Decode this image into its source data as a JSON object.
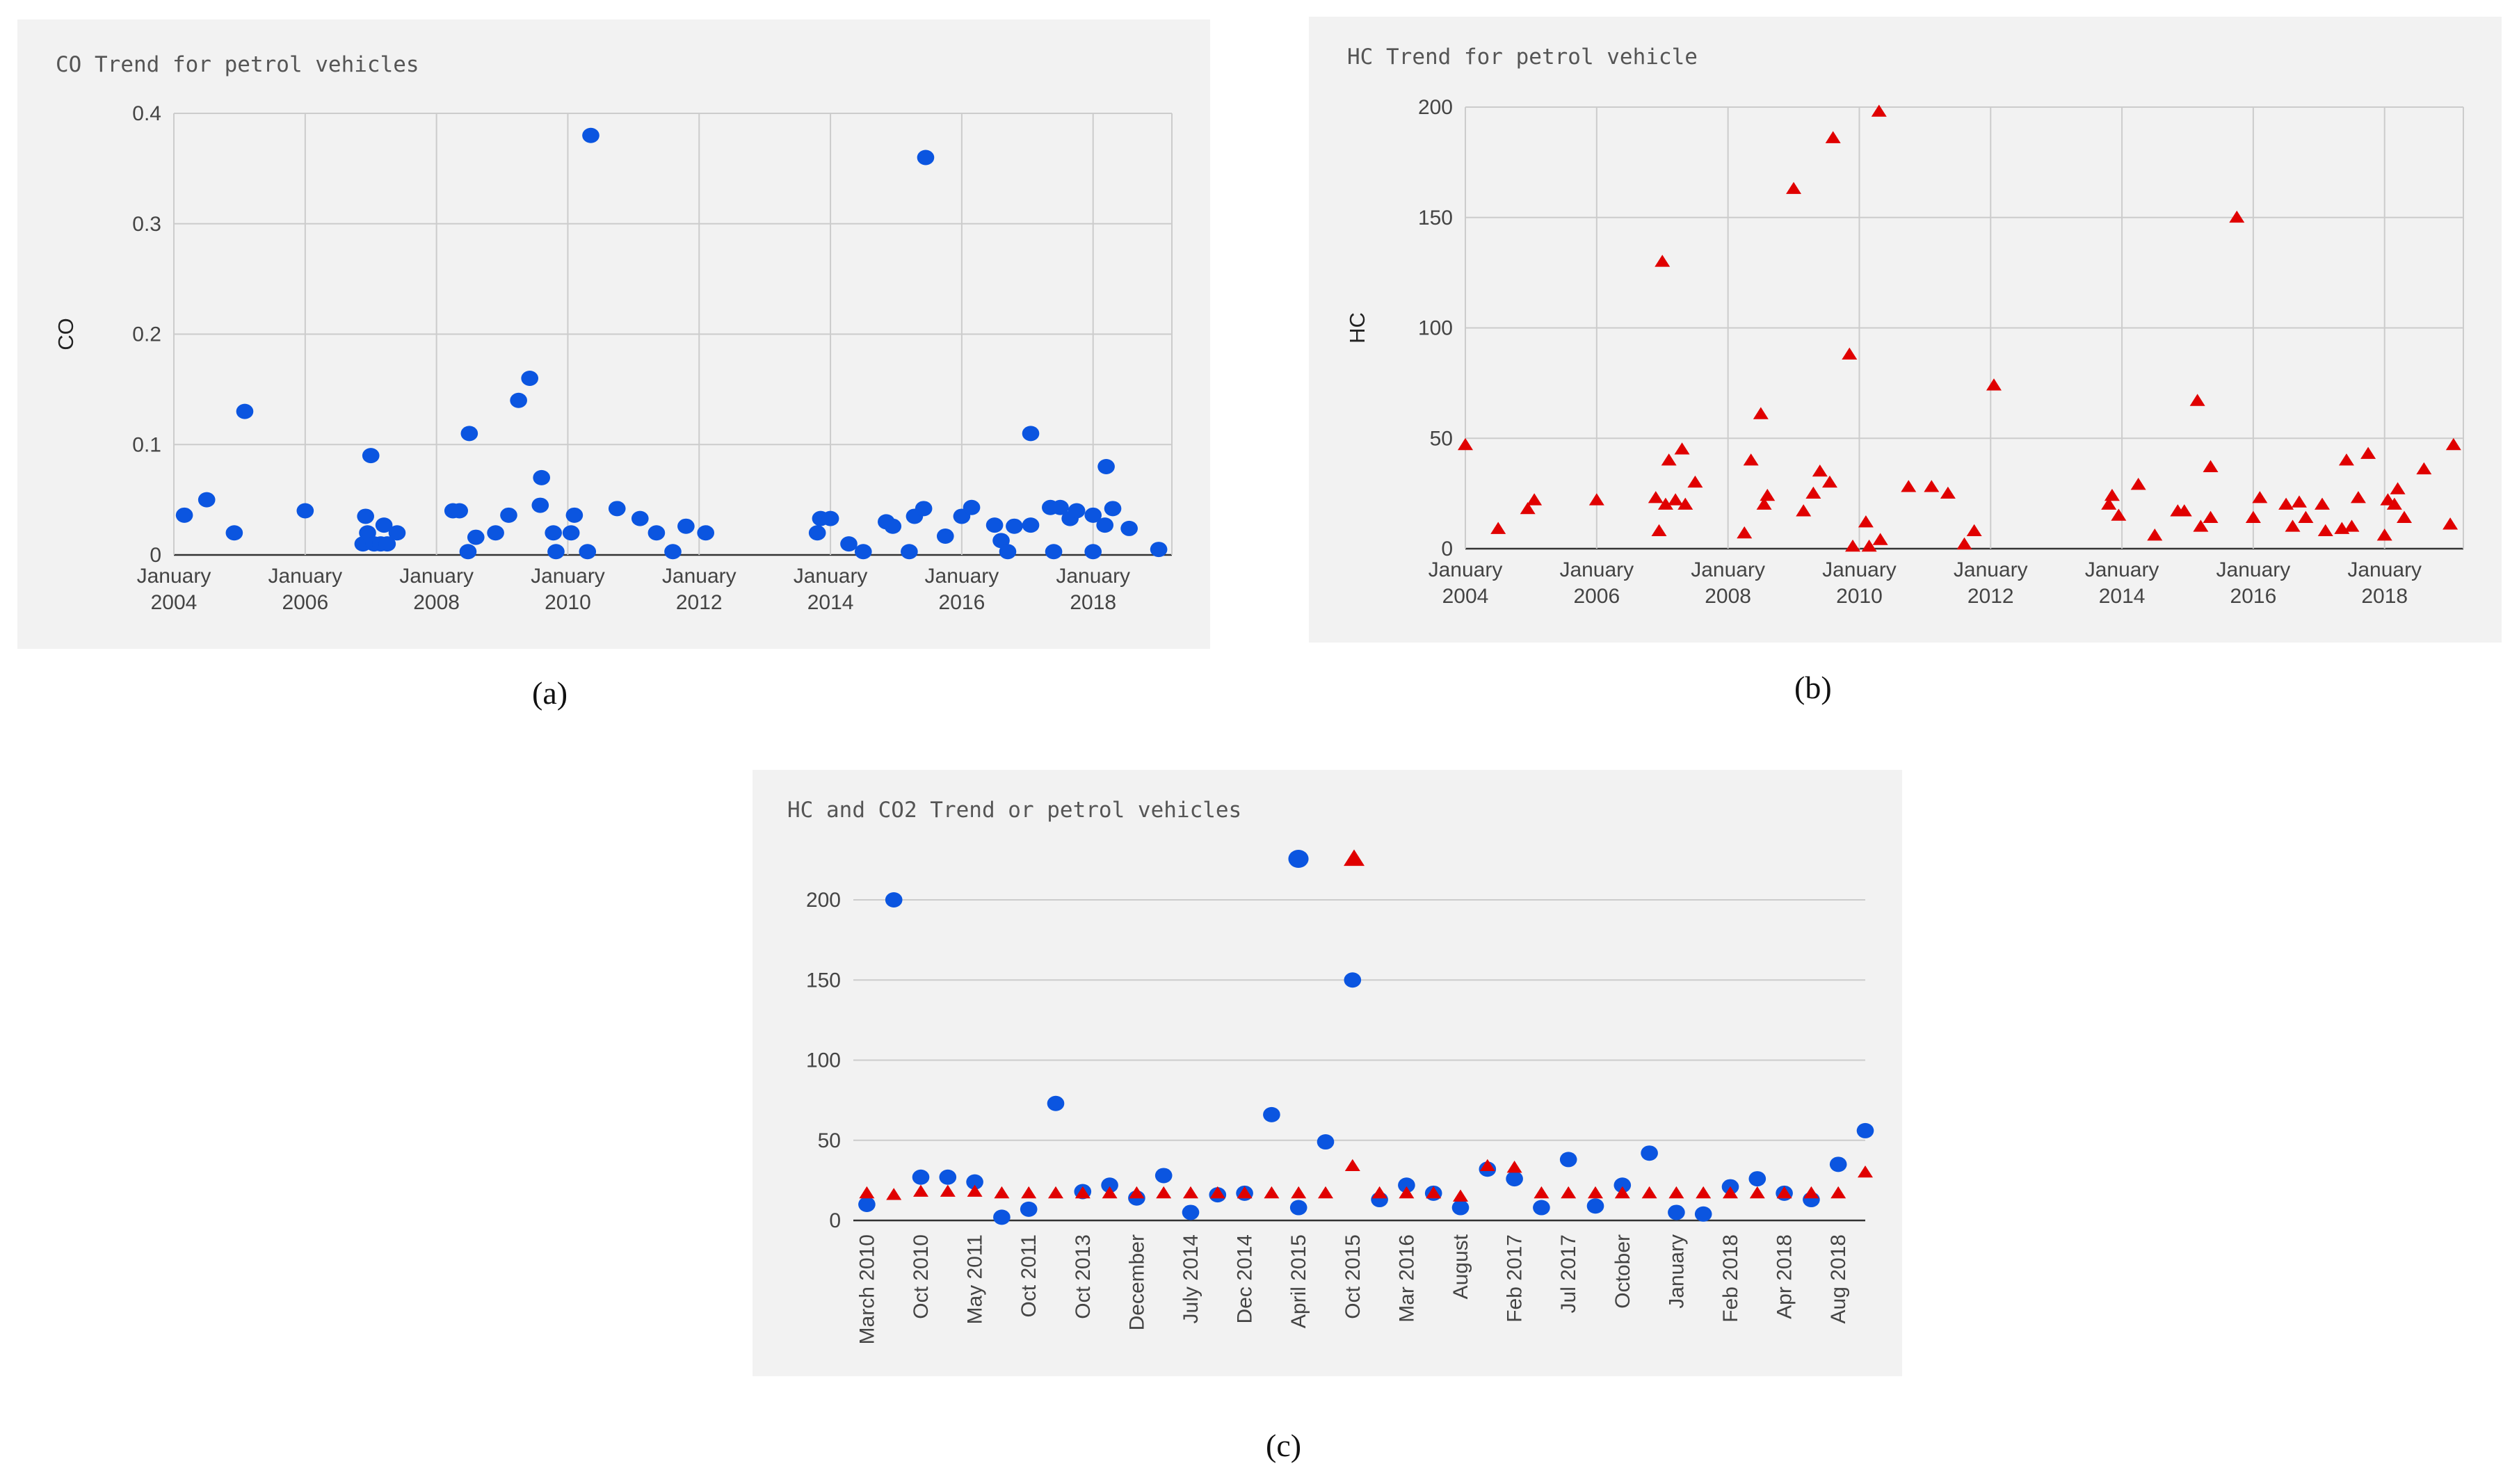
{
  "captions": {
    "a": "(a)",
    "b": "(b)",
    "c": "(c)"
  },
  "colors": {
    "blue": "#0b55e0",
    "red": "#e00000",
    "grid": "#cccccc",
    "axis": "#333333"
  },
  "chart_data": [
    {
      "id": "a",
      "type": "scatter",
      "title": "CO Trend for petrol vehicles",
      "xlabel": "",
      "ylabel": "CO",
      "xlim": [
        2004,
        2019.2
      ],
      "ylim": [
        0,
        0.4
      ],
      "yticks": [
        {
          "v": 0,
          "label": "0"
        },
        {
          "v": 0.1,
          "label": "0.1"
        },
        {
          "v": 0.2,
          "label": "0.2"
        },
        {
          "v": 0.3,
          "label": "0.3"
        },
        {
          "v": 0.4,
          "label": "0.4"
        }
      ],
      "xticks": [
        {
          "v": 2004,
          "line1": "January",
          "line2": "2004"
        },
        {
          "v": 2006,
          "line1": "January",
          "line2": "2006"
        },
        {
          "v": 2008,
          "line1": "January",
          "line2": "2008"
        },
        {
          "v": 2010,
          "line1": "January",
          "line2": "2010"
        },
        {
          "v": 2012,
          "line1": "January",
          "line2": "2012"
        },
        {
          "v": 2014,
          "line1": "January",
          "line2": "2014"
        },
        {
          "v": 2016,
          "line1": "January",
          "line2": "2016"
        },
        {
          "v": 2018,
          "line1": "January",
          "line2": "2018"
        }
      ],
      "series": [
        {
          "name": "CO",
          "marker": "circle",
          "color": "#0b55e0",
          "points": [
            [
              2004.16,
              0.036
            ],
            [
              2004.5,
              0.05
            ],
            [
              2004.92,
              0.02
            ],
            [
              2005.08,
              0.13
            ],
            [
              2006.0,
              0.04
            ],
            [
              2006.88,
              0.01
            ],
            [
              2006.92,
              0.035
            ],
            [
              2006.95,
              0.02
            ],
            [
              2007.0,
              0.09
            ],
            [
              2007.05,
              0.01
            ],
            [
              2007.15,
              0.01
            ],
            [
              2007.25,
              0.01
            ],
            [
              2007.2,
              0.027
            ],
            [
              2007.4,
              0.02
            ],
            [
              2008.25,
              0.04
            ],
            [
              2008.35,
              0.04
            ],
            [
              2008.5,
              0.11
            ],
            [
              2008.48,
              0.003
            ],
            [
              2008.6,
              0.016
            ],
            [
              2008.9,
              0.02
            ],
            [
              2009.1,
              0.036
            ],
            [
              2009.25,
              0.14
            ],
            [
              2009.42,
              0.16
            ],
            [
              2009.6,
              0.07
            ],
            [
              2009.58,
              0.045
            ],
            [
              2009.78,
              0.02
            ],
            [
              2009.82,
              0.003
            ],
            [
              2010.1,
              0.036
            ],
            [
              2010.05,
              0.02
            ],
            [
              2010.35,
              0.38
            ],
            [
              2010.3,
              0.003
            ],
            [
              2010.75,
              0.042
            ],
            [
              2011.1,
              0.033
            ],
            [
              2011.35,
              0.02
            ],
            [
              2011.6,
              0.003
            ],
            [
              2011.8,
              0.026
            ],
            [
              2012.1,
              0.02
            ],
            [
              2013.8,
              0.02
            ],
            [
              2013.85,
              0.033
            ],
            [
              2014.0,
              0.033
            ],
            [
              2014.28,
              0.01
            ],
            [
              2014.5,
              0.003
            ],
            [
              2014.85,
              0.03
            ],
            [
              2014.95,
              0.026
            ],
            [
              2015.2,
              0.003
            ],
            [
              2015.28,
              0.035
            ],
            [
              2015.45,
              0.36
            ],
            [
              2015.42,
              0.042
            ],
            [
              2015.75,
              0.017
            ],
            [
              2016.0,
              0.035
            ],
            [
              2016.15,
              0.043
            ],
            [
              2016.5,
              0.027
            ],
            [
              2016.6,
              0.013
            ],
            [
              2016.7,
              0.003
            ],
            [
              2016.8,
              0.026
            ],
            [
              2017.05,
              0.11
            ],
            [
              2017.05,
              0.027
            ],
            [
              2017.4,
              0.003
            ],
            [
              2017.35,
              0.043
            ],
            [
              2017.5,
              0.043
            ],
            [
              2017.65,
              0.033
            ],
            [
              2017.75,
              0.04
            ],
            [
              2018.0,
              0.003
            ],
            [
              2018.0,
              0.036
            ],
            [
              2018.2,
              0.08
            ],
            [
              2018.18,
              0.027
            ],
            [
              2018.3,
              0.042
            ],
            [
              2018.55,
              0.024
            ],
            [
              2019.0,
              0.005
            ]
          ]
        }
      ]
    },
    {
      "id": "b",
      "type": "scatter",
      "title": "HC Trend for petrol vehicle",
      "xlabel": "",
      "ylabel": "HC",
      "xlim": [
        2004,
        2019.2
      ],
      "ylim": [
        0,
        200
      ],
      "yticks": [
        {
          "v": 0,
          "label": "0"
        },
        {
          "v": 50,
          "label": "50"
        },
        {
          "v": 100,
          "label": "100"
        },
        {
          "v": 150,
          "label": "150"
        },
        {
          "v": 200,
          "label": "200"
        }
      ],
      "xticks": [
        {
          "v": 2004,
          "line1": "January",
          "line2": "2004"
        },
        {
          "v": 2006,
          "line1": "January",
          "line2": "2006"
        },
        {
          "v": 2008,
          "line1": "January",
          "line2": "2008"
        },
        {
          "v": 2010,
          "line1": "January",
          "line2": "2010"
        },
        {
          "v": 2012,
          "line1": "January",
          "line2": "2012"
        },
        {
          "v": 2014,
          "line1": "January",
          "line2": "2014"
        },
        {
          "v": 2016,
          "line1": "January",
          "line2": "2016"
        },
        {
          "v": 2018,
          "line1": "January",
          "line2": "2018"
        }
      ],
      "series": [
        {
          "name": "HC",
          "marker": "triangle",
          "color": "#e00000",
          "points": [
            [
              2004.0,
              47
            ],
            [
              2004.5,
              9
            ],
            [
              2004.95,
              18
            ],
            [
              2005.05,
              22
            ],
            [
              2006.0,
              22
            ],
            [
              2006.9,
              23
            ],
            [
              2006.95,
              8
            ],
            [
              2007.0,
              130
            ],
            [
              2007.05,
              20
            ],
            [
              2007.1,
              40
            ],
            [
              2007.2,
              22
            ],
            [
              2007.3,
              45
            ],
            [
              2007.35,
              20
            ],
            [
              2007.5,
              30
            ],
            [
              2008.25,
              7
            ],
            [
              2008.35,
              40
            ],
            [
              2008.5,
              61
            ],
            [
              2008.55,
              20
            ],
            [
              2008.6,
              24
            ],
            [
              2009.0,
              163
            ],
            [
              2009.15,
              17
            ],
            [
              2009.3,
              25
            ],
            [
              2009.4,
              35
            ],
            [
              2009.6,
              186
            ],
            [
              2009.55,
              30
            ],
            [
              2009.85,
              88
            ],
            [
              2009.9,
              1
            ],
            [
              2010.1,
              12
            ],
            [
              2010.15,
              1
            ],
            [
              2010.3,
              198
            ],
            [
              2010.32,
              4
            ],
            [
              2010.75,
              28
            ],
            [
              2011.1,
              28
            ],
            [
              2011.35,
              25
            ],
            [
              2011.6,
              2
            ],
            [
              2011.75,
              8
            ],
            [
              2012.05,
              74
            ],
            [
              2013.8,
              20
            ],
            [
              2013.85,
              24
            ],
            [
              2013.95,
              15
            ],
            [
              2014.25,
              29
            ],
            [
              2014.5,
              6
            ],
            [
              2014.85,
              17
            ],
            [
              2014.95,
              17
            ],
            [
              2015.15,
              67
            ],
            [
              2015.2,
              10
            ],
            [
              2015.35,
              14
            ],
            [
              2015.35,
              37
            ],
            [
              2015.75,
              150
            ],
            [
              2016.0,
              14
            ],
            [
              2016.1,
              23
            ],
            [
              2016.5,
              20
            ],
            [
              2016.6,
              10
            ],
            [
              2016.7,
              21
            ],
            [
              2016.8,
              14
            ],
            [
              2017.05,
              20
            ],
            [
              2017.1,
              8
            ],
            [
              2017.35,
              9
            ],
            [
              2017.42,
              40
            ],
            [
              2017.5,
              10
            ],
            [
              2017.6,
              23
            ],
            [
              2017.75,
              43
            ],
            [
              2018.0,
              6
            ],
            [
              2018.05,
              22
            ],
            [
              2018.15,
              20
            ],
            [
              2018.2,
              27
            ],
            [
              2018.3,
              14
            ],
            [
              2018.6,
              36
            ],
            [
              2019.0,
              11
            ],
            [
              2019.05,
              47
            ]
          ]
        }
      ]
    },
    {
      "id": "c",
      "type": "scatter",
      "title": "HC and CO2 Trend or petrol vehicles",
      "xlabel": "",
      "ylabel": "",
      "categories": [
        "March 2010",
        "Oct 2010",
        "May 2011",
        "Oct 2011",
        "Oct 2013",
        "December",
        "July 2014",
        "Dec 2014",
        "April 2015",
        "Oct 2015",
        "Mar 2016",
        "August",
        "Feb 2017",
        "Jul 2017",
        "October",
        "January",
        "Feb 2018",
        "Apr 2018",
        "Aug 2018"
      ],
      "xlim": [
        0,
        37.5
      ],
      "ylim": [
        0,
        200
      ],
      "yticks": [
        {
          "v": 0,
          "label": "0"
        },
        {
          "v": 50,
          "label": "50"
        },
        {
          "v": 100,
          "label": "100"
        },
        {
          "v": 150,
          "label": "150"
        },
        {
          "v": 200,
          "label": "200"
        }
      ],
      "legend": {
        "position": "top",
        "entries": [
          {
            "marker": "circle",
            "color": "#0b55e0",
            "label": ""
          },
          {
            "marker": "triangle",
            "color": "#e00000",
            "label": ""
          }
        ]
      },
      "series": [
        {
          "name": "HC",
          "marker": "circle",
          "color": "#0b55e0",
          "values": [
            10,
            200,
            27,
            27,
            24,
            2,
            7,
            73,
            18,
            22,
            14,
            28,
            5,
            16,
            17,
            66,
            8,
            49,
            150,
            13,
            22,
            17,
            8,
            32,
            26,
            8,
            38,
            9,
            22,
            42,
            5,
            4,
            21,
            26,
            17,
            13,
            35,
            56
          ]
        },
        {
          "name": "CO2",
          "marker": "triangle",
          "color": "#e00000",
          "values": [
            17,
            16,
            18,
            18,
            18,
            17,
            17,
            17,
            17,
            17,
            17,
            17,
            17,
            17,
            17,
            17,
            17,
            17,
            34,
            17,
            17,
            17,
            15,
            34,
            33,
            17,
            17,
            17,
            17,
            17,
            17,
            17,
            17,
            17,
            17,
            17,
            17,
            30
          ]
        }
      ]
    }
  ]
}
